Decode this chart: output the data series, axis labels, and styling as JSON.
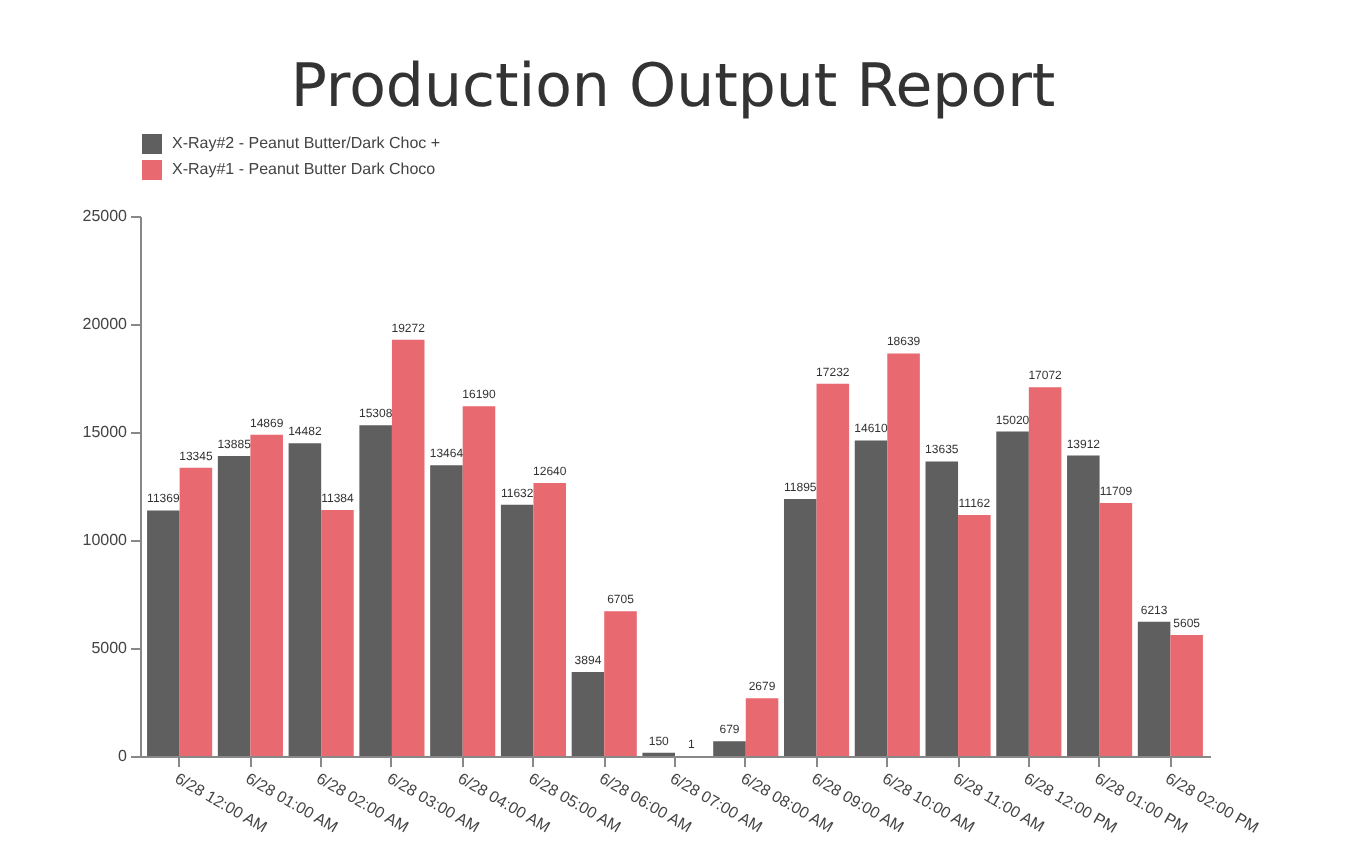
{
  "chart_data": {
    "type": "bar",
    "title": "Production Output Report",
    "categories": [
      "6/28 12:00 AM",
      "6/28 01:00 AM",
      "6/28 02:00 AM",
      "6/28 03:00 AM",
      "6/28 04:00 AM",
      "6/28 05:00 AM",
      "6/28 06:00 AM",
      "6/28 07:00 AM",
      "6/28 08:00 AM",
      "6/28 09:00 AM",
      "6/28 10:00 AM",
      "6/28 11:00 AM",
      "6/28 12:00 PM",
      "6/28 01:00 PM",
      "6/28 02:00 PM"
    ],
    "series": [
      {
        "name": "X-Ray#2 - Peanut Butter/Dark Choc +",
        "color": "#5f5f5f",
        "values": [
          11369,
          13885,
          14482,
          15308,
          13464,
          11632,
          3894,
          150,
          679,
          11895,
          14610,
          13635,
          15020,
          13912,
          6213
        ]
      },
      {
        "name": "X-Ray#1 - Peanut Butter Dark Choco",
        "color": "#e8696f",
        "values": [
          13345,
          14869,
          11384,
          19272,
          16190,
          12640,
          6705,
          1,
          2679,
          17232,
          18639,
          11162,
          17072,
          11709,
          5605
        ]
      }
    ],
    "ylim": [
      0,
      25000
    ],
    "yticks": [
      0,
      5000,
      10000,
      15000,
      20000,
      25000
    ],
    "grid": false,
    "legend": "top",
    "data_labels": true
  }
}
